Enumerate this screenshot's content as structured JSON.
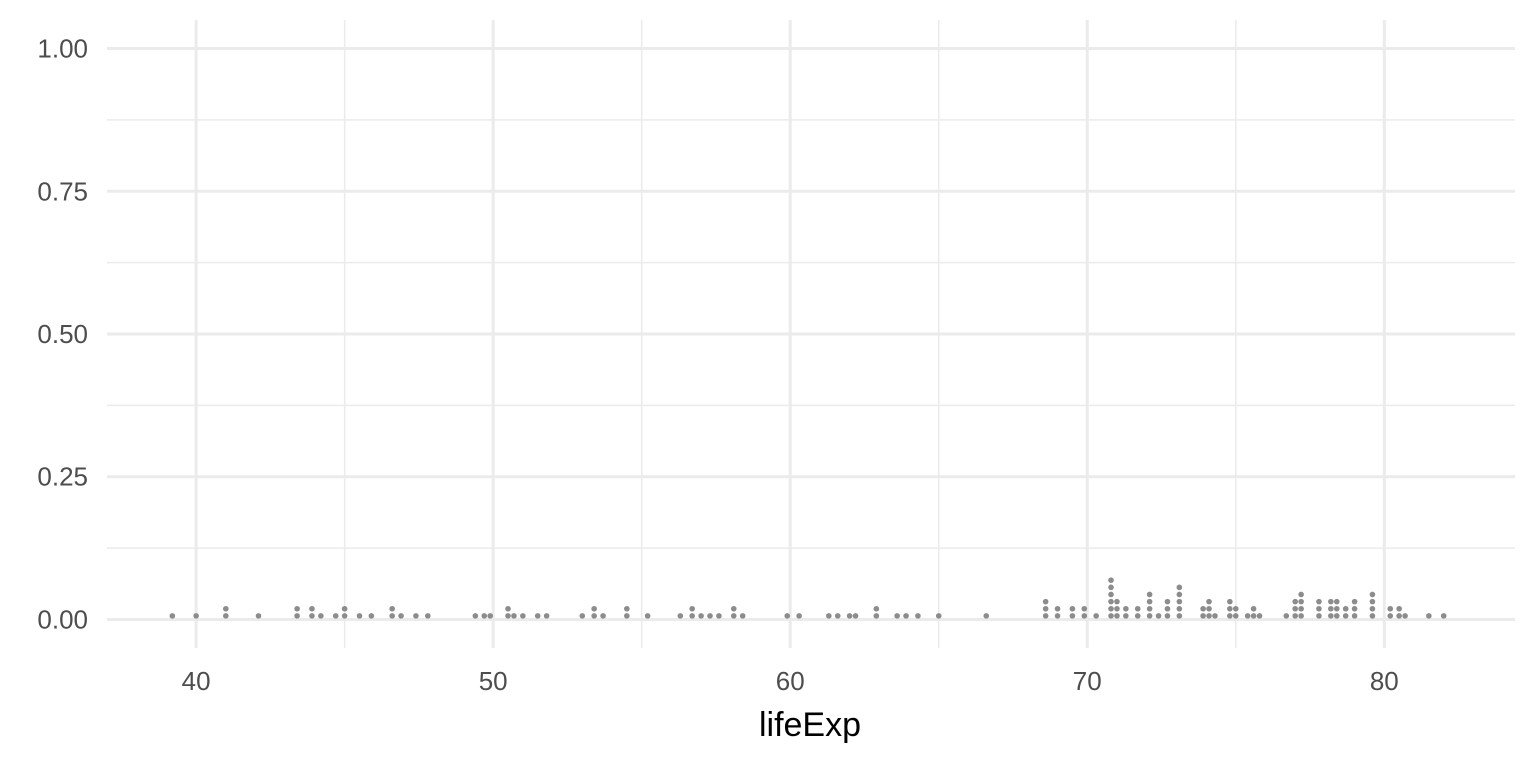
{
  "chart_data": {
    "type": "scatter",
    "subtype": "dotplot",
    "title": "",
    "xlabel": "lifeExp",
    "ylabel": "",
    "xlim": [
      37.0,
      84.4
    ],
    "ylim": [
      -0.05,
      1.05
    ],
    "x_ticks": [
      40,
      50,
      60,
      70,
      80
    ],
    "x_tick_labels": [
      "40",
      "50",
      "60",
      "70",
      "80"
    ],
    "y_ticks": [
      0,
      0.25,
      0.5,
      0.75,
      1.0
    ],
    "y_tick_labels": [
      "0.00",
      "0.25",
      "0.50",
      "0.75",
      "1.00"
    ],
    "grid": true,
    "point_color": "#8c8c8c",
    "stack_unit": 0.0125,
    "stacks": [
      {
        "x": 39.2,
        "count": 1
      },
      {
        "x": 40.0,
        "count": 1
      },
      {
        "x": 41.0,
        "count": 2
      },
      {
        "x": 42.1,
        "count": 1
      },
      {
        "x": 43.4,
        "count": 2
      },
      {
        "x": 43.9,
        "count": 2
      },
      {
        "x": 44.2,
        "count": 1
      },
      {
        "x": 44.7,
        "count": 1
      },
      {
        "x": 45.0,
        "count": 2
      },
      {
        "x": 45.5,
        "count": 1
      },
      {
        "x": 45.9,
        "count": 1
      },
      {
        "x": 46.6,
        "count": 2
      },
      {
        "x": 46.9,
        "count": 1
      },
      {
        "x": 47.4,
        "count": 1
      },
      {
        "x": 47.8,
        "count": 1
      },
      {
        "x": 49.4,
        "count": 1
      },
      {
        "x": 49.7,
        "count": 1
      },
      {
        "x": 49.9,
        "count": 1
      },
      {
        "x": 50.5,
        "count": 2
      },
      {
        "x": 50.7,
        "count": 1
      },
      {
        "x": 51.0,
        "count": 1
      },
      {
        "x": 51.5,
        "count": 1
      },
      {
        "x": 51.8,
        "count": 1
      },
      {
        "x": 53.0,
        "count": 1
      },
      {
        "x": 53.4,
        "count": 2
      },
      {
        "x": 53.7,
        "count": 1
      },
      {
        "x": 54.5,
        "count": 2
      },
      {
        "x": 55.2,
        "count": 1
      },
      {
        "x": 56.3,
        "count": 1
      },
      {
        "x": 56.7,
        "count": 2
      },
      {
        "x": 57.0,
        "count": 1
      },
      {
        "x": 57.3,
        "count": 1
      },
      {
        "x": 57.6,
        "count": 1
      },
      {
        "x": 58.1,
        "count": 2
      },
      {
        "x": 58.4,
        "count": 1
      },
      {
        "x": 59.9,
        "count": 1
      },
      {
        "x": 60.3,
        "count": 1
      },
      {
        "x": 61.3,
        "count": 1
      },
      {
        "x": 61.6,
        "count": 1
      },
      {
        "x": 62.0,
        "count": 1
      },
      {
        "x": 62.2,
        "count": 1
      },
      {
        "x": 62.9,
        "count": 2
      },
      {
        "x": 63.6,
        "count": 1
      },
      {
        "x": 63.9,
        "count": 1
      },
      {
        "x": 64.3,
        "count": 1
      },
      {
        "x": 65.0,
        "count": 1
      },
      {
        "x": 66.6,
        "count": 1
      },
      {
        "x": 68.6,
        "count": 3
      },
      {
        "x": 69.0,
        "count": 2
      },
      {
        "x": 69.5,
        "count": 2
      },
      {
        "x": 69.9,
        "count": 2
      },
      {
        "x": 70.3,
        "count": 1
      },
      {
        "x": 70.8,
        "count": 6
      },
      {
        "x": 71.0,
        "count": 3
      },
      {
        "x": 71.3,
        "count": 2
      },
      {
        "x": 71.7,
        "count": 2
      },
      {
        "x": 72.1,
        "count": 4
      },
      {
        "x": 72.4,
        "count": 1
      },
      {
        "x": 72.7,
        "count": 3
      },
      {
        "x": 73.1,
        "count": 5
      },
      {
        "x": 73.9,
        "count": 2
      },
      {
        "x": 74.1,
        "count": 3
      },
      {
        "x": 74.3,
        "count": 1
      },
      {
        "x": 74.8,
        "count": 3
      },
      {
        "x": 75.0,
        "count": 2
      },
      {
        "x": 75.4,
        "count": 1
      },
      {
        "x": 75.6,
        "count": 2
      },
      {
        "x": 75.8,
        "count": 1
      },
      {
        "x": 76.7,
        "count": 1
      },
      {
        "x": 77.0,
        "count": 3
      },
      {
        "x": 77.2,
        "count": 4
      },
      {
        "x": 77.8,
        "count": 3
      },
      {
        "x": 78.2,
        "count": 3
      },
      {
        "x": 78.4,
        "count": 3
      },
      {
        "x": 78.7,
        "count": 2
      },
      {
        "x": 79.0,
        "count": 3
      },
      {
        "x": 79.6,
        "count": 4
      },
      {
        "x": 80.2,
        "count": 2
      },
      {
        "x": 80.5,
        "count": 2
      },
      {
        "x": 80.7,
        "count": 1
      },
      {
        "x": 81.5,
        "count": 1
      },
      {
        "x": 82.0,
        "count": 1
      }
    ]
  }
}
